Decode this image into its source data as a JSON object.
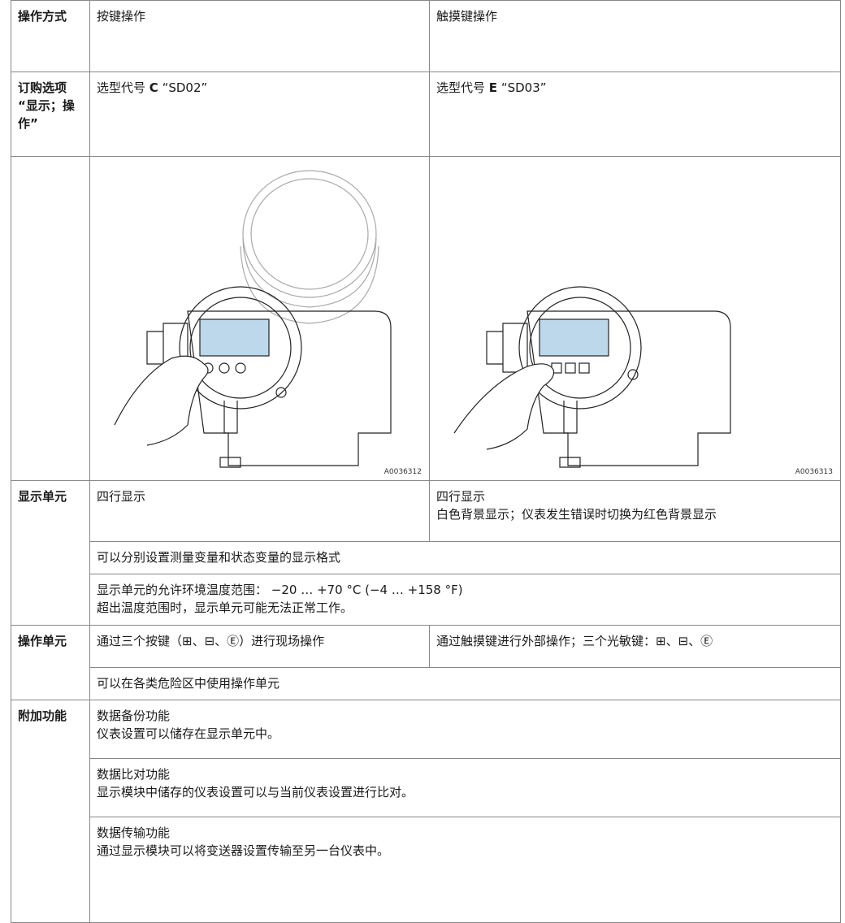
{
  "table": {
    "header": [
      "操作方式",
      "按键操作",
      "触摸键操作"
    ],
    "order": {
      "label": "订购选项“显示；操作”",
      "cells": [
        {
          "prefix": "选型代号",
          "code": "C",
          "suffix": "“SD02”"
        },
        {
          "prefix": "选型代号",
          "code": "E",
          "suffix": "“SD03”"
        }
      ]
    },
    "images": [
      "A0036312",
      "A0036313"
    ],
    "display": {
      "label": "显示单元",
      "keys": [
        "四行显示"
      ],
      "touch": [
        "四行显示",
        "白色背景显示；仪表发生错误时切换为红色背景显示"
      ],
      "common": [
        "可以分别设置测量变量和状态变量的显示格式"
      ],
      "temperature": [
        "显示单元的允许环境温度范围： −20 … +70 °C (−4 … +158 °F)",
        "超出温度范围时，显示单元可能无法正常工作。"
      ]
    },
    "operation": {
      "label": "操作单元",
      "keys": "通过三个按键（⊞、⊟、Ⓔ）进行现场操作",
      "touch": "通过触摸键进行外部操作；三个光敏键：⊞、⊟、Ⓔ",
      "common": "可以在各类危险区中使用操作单元"
    },
    "functions": {
      "label": "附加功能",
      "items": [
        [
          "数据备份功能",
          "仪表设置可以储存在显示单元中。"
        ],
        [
          "数据比对功能",
          "显示模块中储存的仪表设置可以与当前仪表设置进行比对。"
        ],
        [
          "数据传输功能",
          "通过显示模块可以将变送器设置传输至另一台仪表中。"
        ]
      ]
    }
  }
}
